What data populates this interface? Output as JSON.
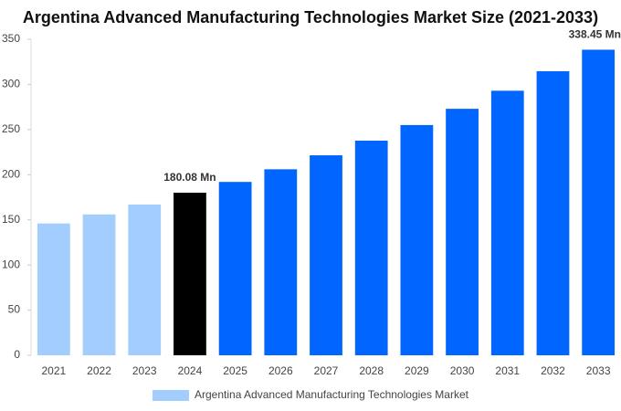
{
  "chart_data": {
    "type": "bar",
    "title": "Argentina Advanced Manufacturing Technologies Market Size (2021-2033)",
    "categories": [
      "2021",
      "2022",
      "2023",
      "2024",
      "2025",
      "2026",
      "2027",
      "2028",
      "2029",
      "2030",
      "2031",
      "2032",
      "2033"
    ],
    "series": [
      {
        "name": "Argentina Advanced Manufacturing Technologies Market",
        "color": "#a3cdfc",
        "values": [
          146,
          156,
          167,
          180.08,
          192,
          206,
          221.5,
          237.7,
          255,
          273,
          293,
          314.6,
          338.45
        ],
        "value_labels": [
          null,
          null,
          null,
          "180.08 Mn",
          null,
          null,
          null,
          null,
          null,
          null,
          null,
          null,
          "338.45 Mn"
        ],
        "colors": [
          "#a3cdfc",
          "#a3cdfc",
          "#a3cdfc",
          "#000000",
          "#0066ff",
          "#0066ff",
          "#0066ff",
          "#0066ff",
          "#0066ff",
          "#0066ff",
          "#0066ff",
          "#0066ff",
          "#0066ff"
        ]
      }
    ],
    "ylim": [
      0,
      350
    ],
    "yticks": [
      0,
      50,
      100,
      150,
      200,
      250,
      300,
      350
    ],
    "grid": false,
    "legend": "bottom"
  }
}
